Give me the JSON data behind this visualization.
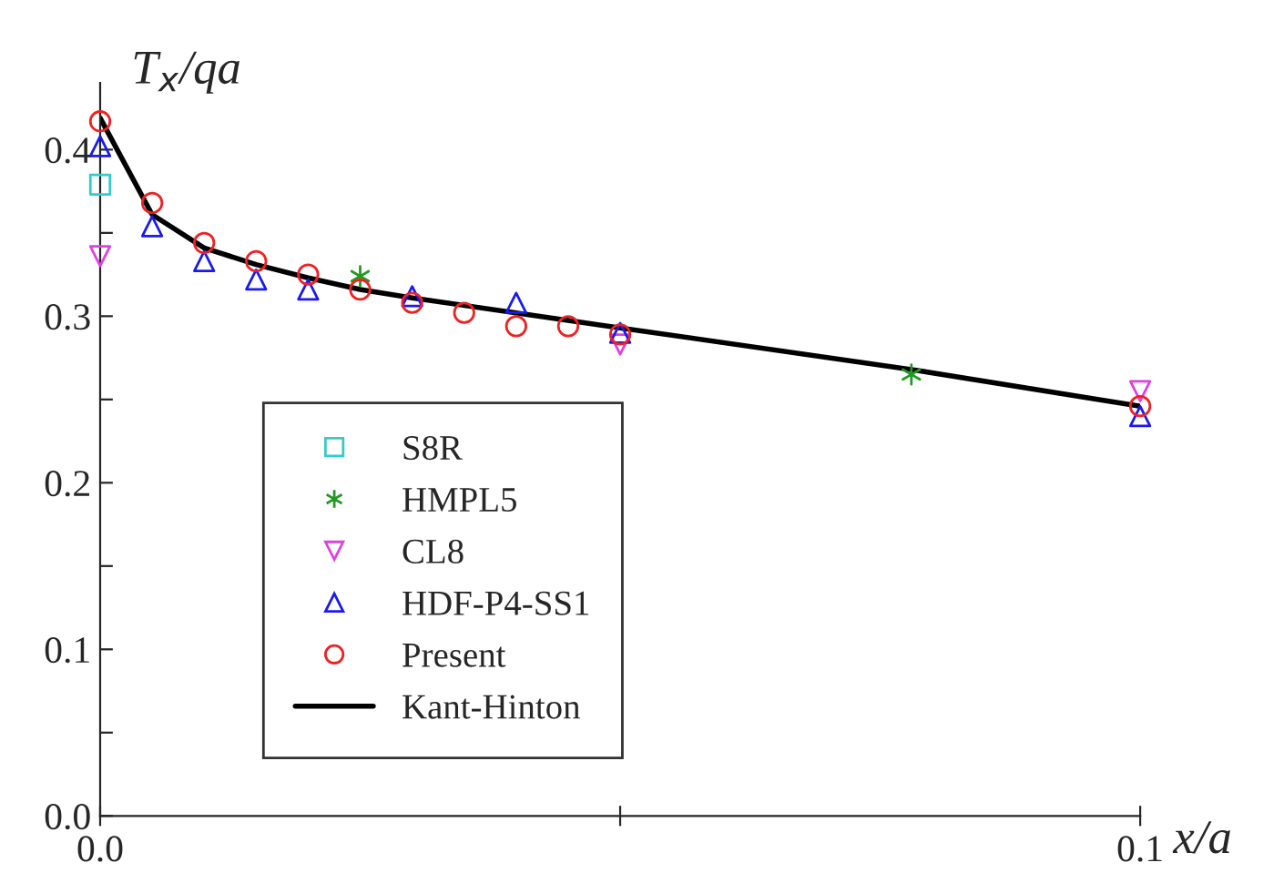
{
  "chart_data": {
    "type": "scatter",
    "xlabel": "x/a",
    "ylabel": "T$_{x}$/qa",
    "xlim": [
      0,
      0.1
    ],
    "ylim": [
      0,
      0.44
    ],
    "xticks": [
      {
        "value": 0,
        "label": "0.0"
      },
      {
        "value": 0.05,
        "label": null
      },
      {
        "value": 0.1,
        "label": "0.1"
      }
    ],
    "yticks": [
      {
        "value": 0,
        "label": "0.0"
      },
      {
        "value": 0.05,
        "label": null
      },
      {
        "value": 0.1,
        "label": "0.1"
      },
      {
        "value": 0.15,
        "label": null
      },
      {
        "value": 0.2,
        "label": "0.2"
      },
      {
        "value": 0.25,
        "label": null
      },
      {
        "value": 0.3,
        "label": "0.3"
      },
      {
        "value": 0.35,
        "label": null
      },
      {
        "value": 0.4,
        "label": "0.4"
      }
    ],
    "grid": false,
    "legend": "bottom left",
    "series": [
      {
        "name": "S8R",
        "color": "#33cccc",
        "marker": "square",
        "x": [
          0
        ],
        "values": [
          0.379
        ]
      },
      {
        "name": "HMPL5",
        "color": "#229922",
        "marker": "cross",
        "x": [
          0.025,
          0.078
        ],
        "values": [
          0.324,
          0.265
        ]
      },
      {
        "name": "CL8",
        "color": "#e040e0",
        "marker": "triangle_down",
        "x": [
          0,
          0.05,
          0.1
        ],
        "values": [
          0.336,
          0.283,
          0.255
        ]
      },
      {
        "name": "HDF-P4-SS1",
        "color": "#1a1aee",
        "marker": "triangle",
        "x": [
          0,
          0.005,
          0.01,
          0.015,
          0.02,
          0.03,
          0.04,
          0.05,
          0.1
        ],
        "values": [
          0.402,
          0.354,
          0.333,
          0.322,
          0.316,
          0.312,
          0.308,
          0.29,
          0.24
        ]
      },
      {
        "name": "Present",
        "color": "#ee2222",
        "marker": "circle",
        "x": [
          0,
          0.005,
          0.01,
          0.015,
          0.02,
          0.025,
          0.03,
          0.035,
          0.04,
          0.045,
          0.05,
          0.1
        ],
        "values": [
          0.417,
          0.368,
          0.344,
          0.333,
          0.325,
          0.316,
          0.308,
          0.302,
          0.294,
          0.294,
          0.289,
          0.246
        ]
      },
      {
        "name": "Kant-Hinton",
        "type": "line",
        "color": "#000000",
        "marker": "none",
        "line_style": "solid",
        "x": [
          0,
          0.005,
          0.01,
          0.015,
          0.02,
          0.025,
          0.03,
          0.04,
          0.05,
          0.078,
          0.1
        ],
        "values": [
          0.419,
          0.361,
          0.341,
          0.331,
          0.323,
          0.316,
          0.311,
          0.302,
          0.293,
          0.268,
          0.246
        ]
      }
    ]
  }
}
